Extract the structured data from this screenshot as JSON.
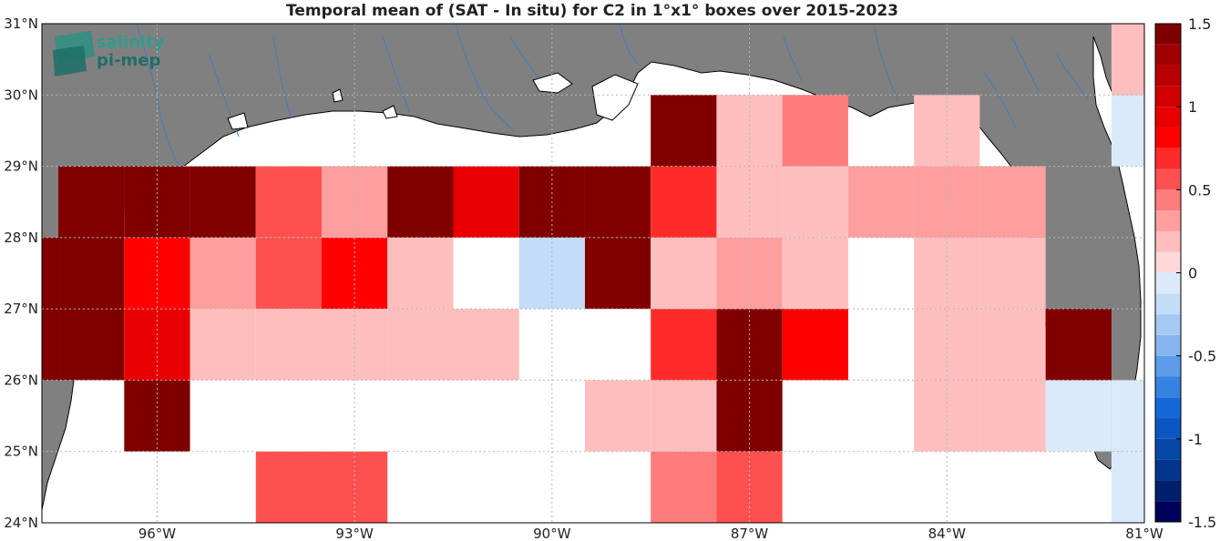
{
  "title": "Temporal mean of (SAT - In situ) for C2 in 1°x1° boxes over 2015-2023",
  "logo": {
    "line1": "salinity",
    "line2": "pi-mep"
  },
  "colors": {
    "land": "#808080",
    "river": "#3c7fc0",
    "coast": "#000000"
  },
  "chart_data": {
    "type": "heatmap",
    "title": "Temporal mean of (SAT - In situ) for C2 in 1°x1° boxes over 2015-2023",
    "xlim": [
      -97.75,
      -81
    ],
    "ylim": [
      24,
      31
    ],
    "x_ticks": [
      {
        "value": -96,
        "label": "96°W"
      },
      {
        "value": -93,
        "label": "93°W"
      },
      {
        "value": -90,
        "label": "90°W"
      },
      {
        "value": -87,
        "label": "87°W"
      },
      {
        "value": -84,
        "label": "84°W"
      },
      {
        "value": -81,
        "label": "81°W"
      }
    ],
    "y_ticks": [
      {
        "value": 24,
        "label": "24°N"
      },
      {
        "value": 25,
        "label": "25°N"
      },
      {
        "value": 26,
        "label": "26°N"
      },
      {
        "value": 27,
        "label": "27°N"
      },
      {
        "value": 28,
        "label": "28°N"
      },
      {
        "value": 29,
        "label": "29°N"
      },
      {
        "value": 30,
        "label": "30°N"
      },
      {
        "value": 31,
        "label": "31°N"
      }
    ],
    "colorbar": {
      "range": [
        -1.5,
        1.5
      ],
      "step": 0.125,
      "ticks": [
        {
          "value": 1.5,
          "label": "1.5"
        },
        {
          "value": 1,
          "label": "1"
        },
        {
          "value": 0.5,
          "label": "0.5"
        },
        {
          "value": 0,
          "label": "0"
        },
        {
          "value": -0.5,
          "label": "-0.5"
        },
        {
          "value": -1,
          "label": "-1"
        },
        {
          "value": -1.5,
          "label": "-1.5"
        }
      ]
    },
    "cells": [
      {
        "lon": -98,
        "lat": 26.5,
        "v": 1.5
      },
      {
        "lon": -98,
        "lat": 27.5,
        "v": 1.5
      },
      {
        "lon": -97,
        "lat": 26.5,
        "v": 1.5
      },
      {
        "lon": -97,
        "lat": 27.5,
        "v": 1.5
      },
      {
        "lon": -97,
        "lat": 28.5,
        "v": 1.5
      },
      {
        "lon": -96,
        "lat": 25.5,
        "v": 1.5
      },
      {
        "lon": -96,
        "lat": 26.5,
        "v": 1.0
      },
      {
        "lon": -96,
        "lat": 27.5,
        "v": 0.9
      },
      {
        "lon": -96,
        "lat": 28.5,
        "v": 1.5
      },
      {
        "lon": -95,
        "lat": 26.5,
        "v": 0.3
      },
      {
        "lon": -95,
        "lat": 27.5,
        "v": 0.35
      },
      {
        "lon": -95,
        "lat": 28.5,
        "v": 1.5
      },
      {
        "lon": -94,
        "lat": 24.5,
        "v": 0.6
      },
      {
        "lon": -94,
        "lat": 26.5,
        "v": 0.2
      },
      {
        "lon": -94,
        "lat": 27.5,
        "v": 0.65
      },
      {
        "lon": -94,
        "lat": 28.5,
        "v": 0.6
      },
      {
        "lon": -93,
        "lat": 24.5,
        "v": 0.6
      },
      {
        "lon": -93,
        "lat": 26.5,
        "v": 0.3
      },
      {
        "lon": -93,
        "lat": 27.5,
        "v": 0.85
      },
      {
        "lon": -93,
        "lat": 28.5,
        "v": 0.4
      },
      {
        "lon": -92,
        "lat": 26.5,
        "v": 0.2
      },
      {
        "lon": -92,
        "lat": 27.5,
        "v": 0.2
      },
      {
        "lon": -92,
        "lat": 28.5,
        "v": 1.5
      },
      {
        "lon": -91,
        "lat": 26.5,
        "v": 0.2
      },
      {
        "lon": -91,
        "lat": 28.5,
        "v": 1.0
      },
      {
        "lon": -90,
        "lat": 27.5,
        "v": -0.3
      },
      {
        "lon": -90,
        "lat": 28.5,
        "v": 1.5
      },
      {
        "lon": -89,
        "lat": 25.5,
        "v": 0.2
      },
      {
        "lon": -89,
        "lat": 27.5,
        "v": 1.5
      },
      {
        "lon": -89,
        "lat": 28.5,
        "v": 1.5
      },
      {
        "lon": -88,
        "lat": 24.5,
        "v": 0.5
      },
      {
        "lon": -88,
        "lat": 25.5,
        "v": 0.3
      },
      {
        "lon": -88,
        "lat": 26.5,
        "v": 0.7
      },
      {
        "lon": -88,
        "lat": 27.5,
        "v": 0.2
      },
      {
        "lon": -88,
        "lat": 28.5,
        "v": 0.7
      },
      {
        "lon": -88,
        "lat": 29.5,
        "v": 1.5
      },
      {
        "lon": -87,
        "lat": 24.5,
        "v": 0.6
      },
      {
        "lon": -87,
        "lat": 25.5,
        "v": 1.5
      },
      {
        "lon": -87,
        "lat": 26.5,
        "v": 1.5
      },
      {
        "lon": -87,
        "lat": 27.5,
        "v": 0.4
      },
      {
        "lon": -87,
        "lat": 28.5,
        "v": 0.2
      },
      {
        "lon": -87,
        "lat": 29.5,
        "v": 0.2
      },
      {
        "lon": -86,
        "lat": 26.5,
        "v": 0.9
      },
      {
        "lon": -86,
        "lat": 27.5,
        "v": 0.2
      },
      {
        "lon": -86,
        "lat": 28.5,
        "v": 0.2
      },
      {
        "lon": -86,
        "lat": 29.5,
        "v": 0.5
      },
      {
        "lon": -85,
        "lat": 28.5,
        "v": 0.4
      },
      {
        "lon": -84,
        "lat": 25.5,
        "v": 0.2
      },
      {
        "lon": -84,
        "lat": 26.5,
        "v": 0.2
      },
      {
        "lon": -84,
        "lat": 27.5,
        "v": 0.2
      },
      {
        "lon": -84,
        "lat": 28.5,
        "v": 0.35
      },
      {
        "lon": -84,
        "lat": 29.5,
        "v": 0.2
      },
      {
        "lon": -83,
        "lat": 25.5,
        "v": 0.2
      },
      {
        "lon": -83,
        "lat": 26.5,
        "v": 0.2
      },
      {
        "lon": -83,
        "lat": 27.5,
        "v": 0.2
      },
      {
        "lon": -83,
        "lat": 28.5,
        "v": 0.4
      },
      {
        "lon": -82,
        "lat": 25.5,
        "v": -0.1
      },
      {
        "lon": -82,
        "lat": 26.5,
        "v": 1.5
      },
      {
        "lon": -81,
        "lat": 24.5,
        "v": -0.1
      },
      {
        "lon": -81,
        "lat": 25.5,
        "v": -0.1
      },
      {
        "lon": -81,
        "lat": 29.5,
        "v": -0.1
      },
      {
        "lon": -81,
        "lat": 30.5,
        "v": 0.3
      }
    ]
  }
}
